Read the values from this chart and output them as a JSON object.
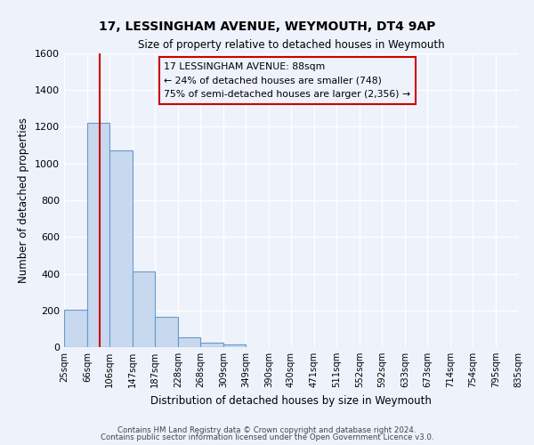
{
  "title": "17, LESSINGHAM AVENUE, WEYMOUTH, DT4 9AP",
  "subtitle": "Size of property relative to detached houses in Weymouth",
  "xlabel": "Distribution of detached houses by size in Weymouth",
  "ylabel": "Number of detached properties",
  "bin_labels": [
    "25sqm",
    "66sqm",
    "106sqm",
    "147sqm",
    "187sqm",
    "228sqm",
    "268sqm",
    "309sqm",
    "349sqm",
    "390sqm",
    "430sqm",
    "471sqm",
    "511sqm",
    "552sqm",
    "592sqm",
    "633sqm",
    "673sqm",
    "714sqm",
    "754sqm",
    "795sqm",
    "835sqm"
  ],
  "bar_values": [
    205,
    1220,
    1070,
    410,
    165,
    55,
    25,
    15,
    0,
    0,
    0,
    0,
    0,
    0,
    0,
    0,
    0,
    0,
    0,
    0
  ],
  "bin_edges": [
    25,
    66,
    106,
    147,
    187,
    228,
    268,
    309,
    349,
    390,
    430,
    471,
    511,
    552,
    592,
    633,
    673,
    714,
    754,
    795,
    835
  ],
  "red_line_x": 88,
  "bar_color": "#c8d8ee",
  "bar_edge_color": "#6699cc",
  "red_line_color": "#cc0000",
  "annotation_box_edge_color": "#cc0000",
  "annotation_line1": "17 LESSINGHAM AVENUE: 88sqm",
  "annotation_line2": "← 24% of detached houses are smaller (748)",
  "annotation_line3": "75% of semi-detached houses are larger (2,356) →",
  "ylim": [
    0,
    1600
  ],
  "yticks": [
    0,
    200,
    400,
    600,
    800,
    1000,
    1200,
    1400,
    1600
  ],
  "footer_line1": "Contains HM Land Registry data © Crown copyright and database right 2024.",
  "footer_line2": "Contains public sector information licensed under the Open Government Licence v3.0.",
  "background_color": "#eef2fb",
  "grid_color": "#ffffff"
}
